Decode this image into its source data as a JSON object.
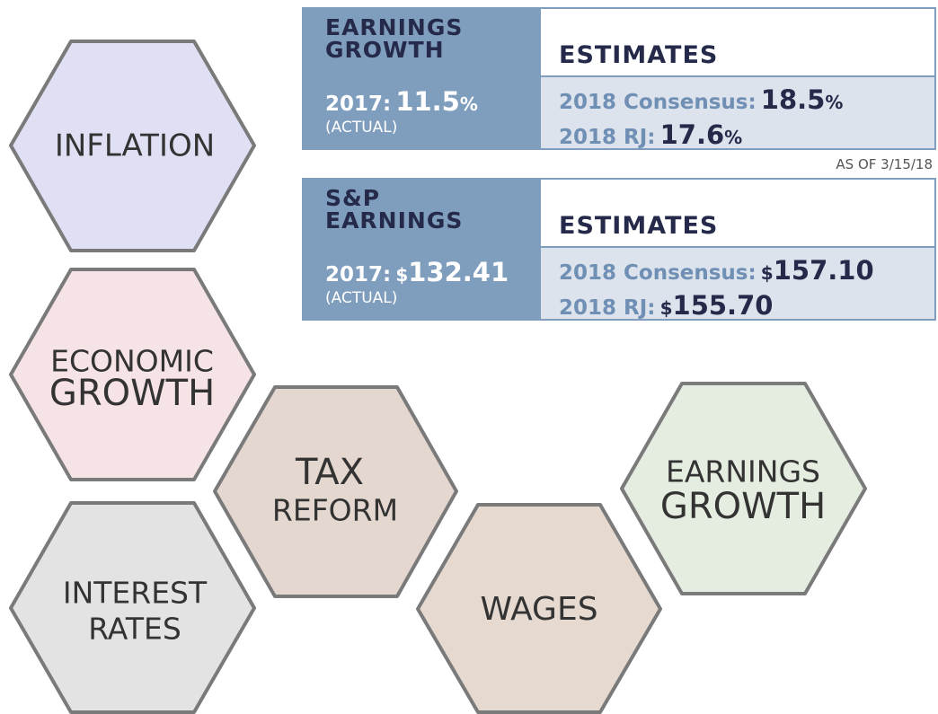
{
  "hexagons": [
    {
      "lines": [
        "INFLATION"
      ]
    },
    {
      "lines": [
        "ECONOMIC",
        "GROWTH"
      ]
    },
    {
      "lines": [
        "INTEREST",
        "RATES"
      ]
    },
    {
      "lines": [
        "TAX",
        "REFORM"
      ]
    },
    {
      "lines": [
        "WAGES"
      ]
    },
    {
      "lines": [
        "EARNINGS",
        "GROWTH"
      ]
    }
  ],
  "tables": [
    {
      "header_left": [
        "EARNINGS",
        "GROWTH"
      ],
      "header_right": "ESTIMATES",
      "actual": {
        "label": "2017:",
        "prefix": "",
        "value": "11.5",
        "suffix": "%",
        "note": "(ACTUAL)"
      },
      "estimates": [
        {
          "label": "2018 Consensus:",
          "prefix": "",
          "value": "18.5",
          "suffix": "%"
        },
        {
          "label": "2018 RJ:",
          "prefix": "",
          "value": "17.6",
          "suffix": "%"
        }
      ]
    },
    {
      "header_left": [
        "S&P",
        "EARNINGS"
      ],
      "header_right": "ESTIMATES",
      "actual": {
        "label": "2017:",
        "prefix": "$",
        "value": "132.41",
        "suffix": "",
        "note": "(ACTUAL)"
      },
      "estimates": [
        {
          "label": "2018 Consensus:",
          "prefix": "$",
          "value": "157.10",
          "suffix": ""
        },
        {
          "label": "2018 RJ:",
          "prefix": "$",
          "value": "155.70",
          "suffix": ""
        }
      ]
    }
  ],
  "as_of": "AS OF 3/15/18"
}
